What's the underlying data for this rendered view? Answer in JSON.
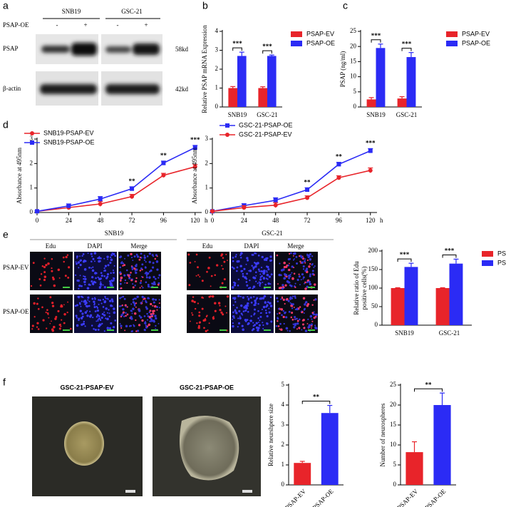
{
  "figure": {
    "panels": [
      "a",
      "b",
      "c",
      "d",
      "e",
      "f"
    ],
    "blot": {
      "groups": [
        "SNB19",
        "GSC-21"
      ],
      "row_label": "PSAP-OE",
      "lanes": [
        "-",
        "+",
        "-",
        "+"
      ],
      "proteins": [
        "PSAP",
        "β-actin"
      ],
      "sizes": [
        "58kd",
        "42kd"
      ]
    },
    "edu": {
      "groups": [
        "SNB19",
        "GSC-21"
      ],
      "stains": [
        "Edu",
        "DAPI",
        "Merge",
        "Edu",
        "DAPI",
        "Merge"
      ],
      "rows": [
        "PSAP-EV",
        "PSAP-OE"
      ]
    },
    "spheres": [
      "GSC-21-PSAP-EV",
      "GSC-21-PSAP-OE"
    ]
  },
  "chart_data": [
    {
      "type": "bar",
      "ylabel": [
        "Relative PSAP mRNA Expression"
      ],
      "categories": [
        "SNB19",
        "GSC-21"
      ],
      "series": [
        {
          "name": "PSAP-EV",
          "color": "#e8242a",
          "values": [
            1.0,
            1.0
          ],
          "errors": [
            0.08,
            0.07
          ]
        },
        {
          "name": "PSAP-OE",
          "color": "#2b2bf5",
          "values": [
            2.7,
            2.7
          ],
          "errors": [
            0.2,
            0.05
          ]
        }
      ],
      "ylim": [
        0,
        4
      ],
      "yticks": [
        0,
        1,
        2,
        3,
        4
      ],
      "legend": "right",
      "annotations": [
        {
          "text": "***",
          "category": 0
        },
        {
          "text": "***",
          "category": 1
        }
      ]
    },
    {
      "type": "bar",
      "ylabel": [
        "PSAP (ng/ml)"
      ],
      "categories": [
        "SNB19",
        "GSC-21"
      ],
      "series": [
        {
          "name": "PSAP-EV",
          "color": "#e8242a",
          "values": [
            2.5,
            2.8
          ],
          "errors": [
            0.6,
            0.6
          ]
        },
        {
          "name": "PSAP-OE",
          "color": "#2b2bf5",
          "values": [
            19.5,
            16.5
          ],
          "errors": [
            1.3,
            1.5
          ]
        }
      ],
      "ylim": [
        0,
        25
      ],
      "yticks": [
        0,
        5,
        10,
        15,
        20,
        25
      ],
      "legend": "right",
      "annotations": [
        {
          "text": "***",
          "category": 0
        },
        {
          "text": "***",
          "category": 1
        }
      ]
    },
    {
      "type": "line",
      "ylabel": [
        "Absorbance at 495nm"
      ],
      "xlabel": "h",
      "x": [
        0,
        24,
        48,
        72,
        96,
        120
      ],
      "series": [
        {
          "name": "SNB19-PSAP-EV",
          "color": "#e8242a",
          "marker": "circle",
          "values": [
            0.05,
            0.2,
            0.35,
            0.65,
            1.52,
            1.87
          ],
          "errors": [
            0.02,
            0.08,
            0.1,
            0.09,
            0.08,
            0.09
          ]
        },
        {
          "name": "SNB19-PSAP-OE",
          "color": "#2b2bf5",
          "marker": "square",
          "values": [
            0.05,
            0.27,
            0.55,
            0.97,
            2.02,
            2.65
          ],
          "errors": [
            0.02,
            0.08,
            0.1,
            0.08,
            0.08,
            0.09
          ]
        }
      ],
      "xlim": [
        0,
        125
      ],
      "xticks": [
        0,
        24,
        48,
        72,
        96,
        120
      ],
      "ylim": [
        0,
        3
      ],
      "yticks": [
        0,
        1,
        2,
        3
      ],
      "legend": "upper left",
      "annotations": [
        {
          "text": "**",
          "x": 72
        },
        {
          "text": "**",
          "x": 96
        },
        {
          "text": "***",
          "x": 120
        }
      ]
    },
    {
      "type": "line",
      "ylabel": [
        "Absorbance at 495nm"
      ],
      "xlabel": "h",
      "x": [
        0,
        24,
        48,
        72,
        96,
        120
      ],
      "series": [
        {
          "name": "GSC-21-PSAP-OE",
          "color": "#2b2bf5",
          "marker": "square",
          "values": [
            0.05,
            0.28,
            0.5,
            0.93,
            1.97,
            2.52
          ],
          "errors": [
            0.02,
            0.08,
            0.1,
            0.08,
            0.08,
            0.09
          ]
        },
        {
          "name": "GSC-21-PSAP-EV",
          "color": "#e8242a",
          "marker": "circle",
          "values": [
            0.05,
            0.2,
            0.3,
            0.6,
            1.42,
            1.72
          ],
          "errors": [
            0.02,
            0.08,
            0.1,
            0.08,
            0.08,
            0.1
          ]
        }
      ],
      "xlim": [
        0,
        125
      ],
      "xticks": [
        0,
        24,
        48,
        72,
        96,
        120
      ],
      "ylim": [
        0,
        3
      ],
      "yticks": [
        0,
        1,
        2,
        3
      ],
      "legend": "upper left",
      "annotations": [
        {
          "text": "**",
          "x": 72
        },
        {
          "text": "**",
          "x": 96
        },
        {
          "text": "***",
          "x": 120
        }
      ]
    },
    {
      "type": "bar",
      "ylabel": [
        "Relative ratio of  Edu",
        "positive cells(%)"
      ],
      "categories": [
        "SNB19",
        "GSC-21"
      ],
      "series": [
        {
          "name": "PSAP-EV",
          "color": "#e8242a",
          "values": [
            100,
            100
          ],
          "errors": [
            1,
            1
          ]
        },
        {
          "name": "PSAP-OE",
          "color": "#2b2bf5",
          "values": [
            157,
            166
          ],
          "errors": [
            10,
            12
          ]
        }
      ],
      "ylim": [
        0,
        200
      ],
      "yticks": [
        0,
        50,
        100,
        150,
        200
      ],
      "legend": "right",
      "annotations": [
        {
          "text": "***",
          "category": 0
        },
        {
          "text": "***",
          "category": 1
        }
      ]
    },
    {
      "type": "bar",
      "ylabel": [
        "Relative neurshpere size"
      ],
      "categories": [
        "PSAP-EV",
        "PSAP-OE"
      ],
      "values": [
        1.1,
        3.6
      ],
      "errors": [
        0.08,
        0.38
      ],
      "colors": [
        "#e8242a",
        "#2b2bf5"
      ],
      "ylim": [
        0,
        5
      ],
      "yticks": [
        0,
        1,
        2,
        3,
        4,
        5
      ],
      "annotations": [
        {
          "text": "**"
        }
      ]
    },
    {
      "type": "bar",
      "ylabel": [
        "Number of neurospheres"
      ],
      "categories": [
        "PSAP-EV",
        "PSAP-OE"
      ],
      "values": [
        8.2,
        20
      ],
      "errors": [
        2.6,
        3
      ],
      "colors": [
        "#e8242a",
        "#2b2bf5"
      ],
      "ylim": [
        0,
        25
      ],
      "yticks": [
        0,
        5,
        10,
        15,
        20,
        25
      ],
      "annotations": [
        {
          "text": "**"
        }
      ]
    }
  ]
}
